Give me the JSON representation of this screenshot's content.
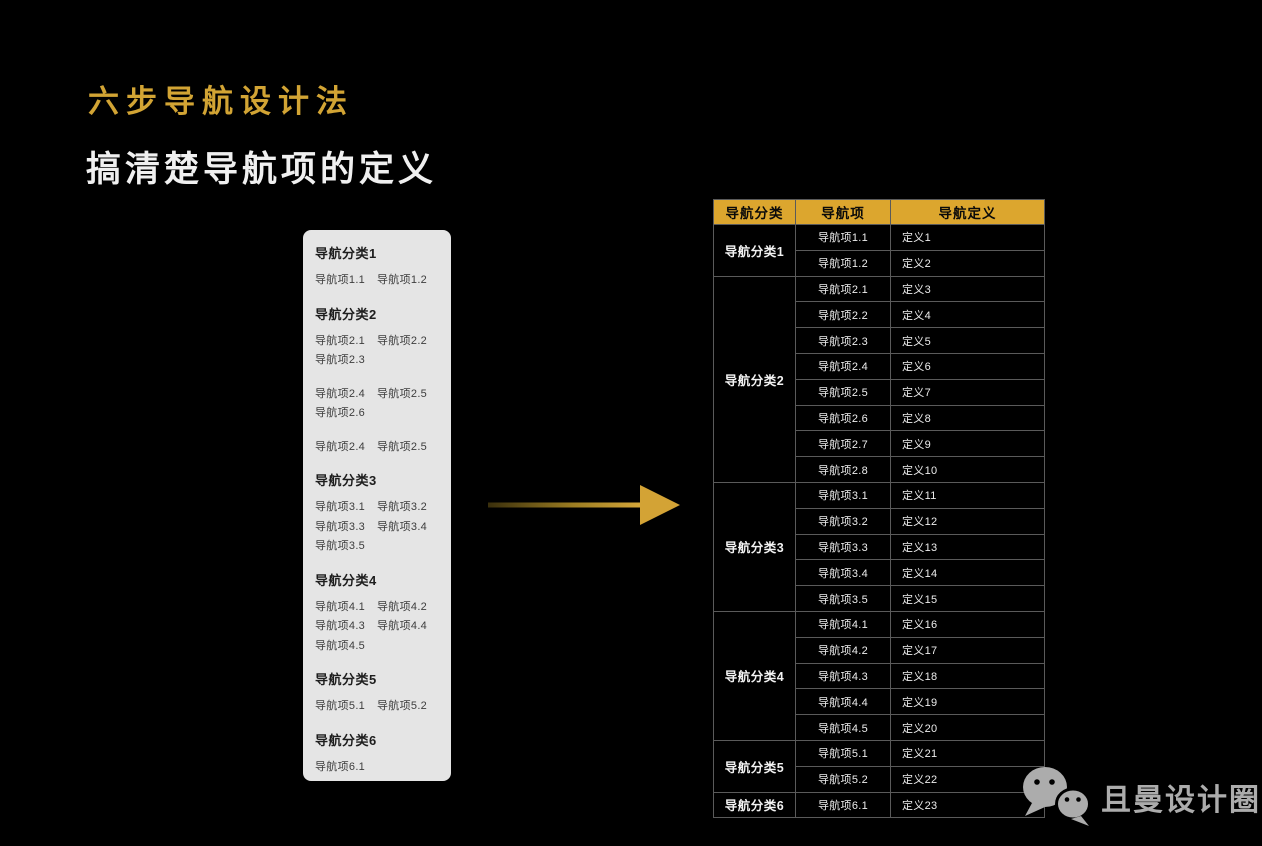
{
  "page": {
    "title": "六步导航设计法",
    "subtitle": "搞清楚导航项的定义",
    "brand": "且曼设计圈"
  },
  "colors": {
    "background": "#000000",
    "gold_accent": "#D2A434",
    "table_header_bg": "#DCA62E",
    "card_bg": "#E5E5E5",
    "table_border": "#5A5A5A",
    "brand_gray": "#ACACAC"
  },
  "icons": {
    "arrow": "right-arrow-icon",
    "brand_logo": "wechat-icon"
  },
  "card": {
    "groups": [
      {
        "title": "导航分类1",
        "rows": [
          {
            "items": [
              "导航项1.1",
              "导航项1.2"
            ]
          }
        ]
      },
      {
        "title": "导航分类2",
        "rows": [
          {
            "items": [
              "导航项2.1",
              "导航项2.2"
            ]
          },
          {
            "items": [
              "导航项2.3"
            ]
          },
          {
            "items": [
              "导航项2.4",
              "导航项2.5"
            ],
            "gap_before": true
          },
          {
            "items": [
              "导航项2.6"
            ]
          },
          {
            "items": [
              "导航项2.4",
              "导航项2.5"
            ],
            "gap_before": true
          }
        ]
      },
      {
        "title": "导航分类3",
        "rows": [
          {
            "items": [
              "导航项3.1",
              "导航项3.2"
            ]
          },
          {
            "items": [
              "导航项3.3",
              "导航项3.4"
            ]
          },
          {
            "items": [
              "导航项3.5"
            ]
          }
        ]
      },
      {
        "title": "导航分类4",
        "rows": [
          {
            "items": [
              "导航项4.1",
              "导航项4.2"
            ]
          },
          {
            "items": [
              "导航项4.3",
              "导航项4.4"
            ]
          },
          {
            "items": [
              "导航项4.5"
            ]
          }
        ]
      },
      {
        "title": "导航分类5",
        "rows": [
          {
            "items": [
              "导航项5.1",
              "导航项5.2"
            ]
          }
        ]
      },
      {
        "title": "导航分类6",
        "rows": [
          {
            "items": [
              "导航项6.1"
            ]
          }
        ]
      }
    ]
  },
  "table": {
    "headers": [
      "导航分类",
      "导航项",
      "导航定义"
    ],
    "groups": [
      {
        "category": "导航分类1",
        "rows": [
          [
            "导航项1.1",
            "定义1"
          ],
          [
            "导航项1.2",
            "定义2"
          ]
        ]
      },
      {
        "category": "导航分类2",
        "rows": [
          [
            "导航项2.1",
            "定义3"
          ],
          [
            "导航项2.2",
            "定义4"
          ],
          [
            "导航项2.3",
            "定义5"
          ],
          [
            "导航项2.4",
            "定义6"
          ],
          [
            "导航项2.5",
            "定义7"
          ],
          [
            "导航项2.6",
            "定义8"
          ],
          [
            "导航项2.7",
            "定义9"
          ],
          [
            "导航项2.8",
            "定义10"
          ]
        ]
      },
      {
        "category": "导航分类3",
        "rows": [
          [
            "导航项3.1",
            "定义11"
          ],
          [
            "导航项3.2",
            "定义12"
          ],
          [
            "导航项3.3",
            "定义13"
          ],
          [
            "导航项3.4",
            "定义14"
          ],
          [
            "导航项3.5",
            "定义15"
          ]
        ]
      },
      {
        "category": "导航分类4",
        "rows": [
          [
            "导航项4.1",
            "定义16"
          ],
          [
            "导航项4.2",
            "定义17"
          ],
          [
            "导航项4.3",
            "定义18"
          ],
          [
            "导航项4.4",
            "定义19"
          ],
          [
            "导航项4.5",
            "定义20"
          ]
        ]
      },
      {
        "category": "导航分类5",
        "rows": [
          [
            "导航项5.1",
            "定义21"
          ],
          [
            "导航项5.2",
            "定义22"
          ]
        ]
      },
      {
        "category": "导航分类6",
        "rows": [
          [
            "导航项6.1",
            "定义23"
          ]
        ]
      }
    ]
  }
}
